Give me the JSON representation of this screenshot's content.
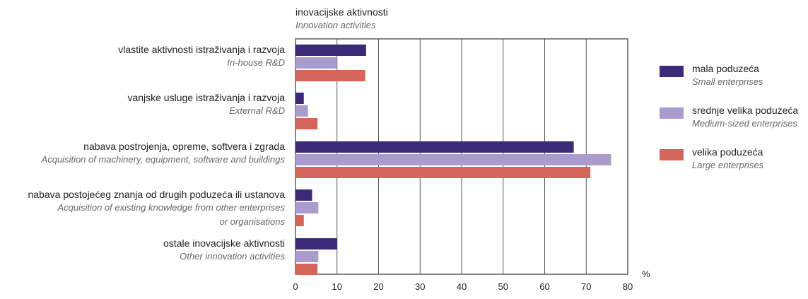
{
  "chart_data": {
    "type": "bar",
    "orientation": "horizontal",
    "title": "inovacijske aktivnosti",
    "subtitle": "Innovation activities",
    "unit_label": "%",
    "xlim": [
      0,
      80
    ],
    "ticks": [
      0,
      10,
      20,
      30,
      40,
      50,
      60,
      70,
      80
    ],
    "grid": true,
    "legend_position": "right",
    "categories": [
      {
        "label": "vlastite aktivnosti istraživanja i razvoja",
        "sublabel": [
          "In-house R&D"
        ]
      },
      {
        "label": "vanjske usluge istraživanja i razvoja",
        "sublabel": [
          "External R&D"
        ]
      },
      {
        "label": "nabava postrojenja, opreme, softvera i zgrada",
        "sublabel": [
          "Acquisition of machinery, equipment, software and buildings"
        ]
      },
      {
        "label": "nabava postojećeg znanja od drugih poduzeća ili ustanova",
        "sublabel": [
          "Acquisition of existing knowledge from other enterprises",
          "or organisations"
        ]
      },
      {
        "label": "ostale inovacijske aktivnosti",
        "sublabel": [
          "Other innovation activities"
        ]
      }
    ],
    "series": [
      {
        "name": "mala poduzeća",
        "name_en": "Small enterprises",
        "color": "#3b2a78",
        "values": [
          17,
          2,
          67,
          4,
          10
        ]
      },
      {
        "name": "srednje velika poduzeća",
        "name_en": "Medium-sized enterprises",
        "color": "#a99bcb",
        "values": [
          10,
          3,
          76,
          5.5,
          5.5
        ]
      },
      {
        "name": "velika poduzeća",
        "name_en": "Large enterprises",
        "color": "#d4655a",
        "values": [
          16.8,
          5.3,
          71,
          2,
          5.3
        ]
      }
    ]
  }
}
